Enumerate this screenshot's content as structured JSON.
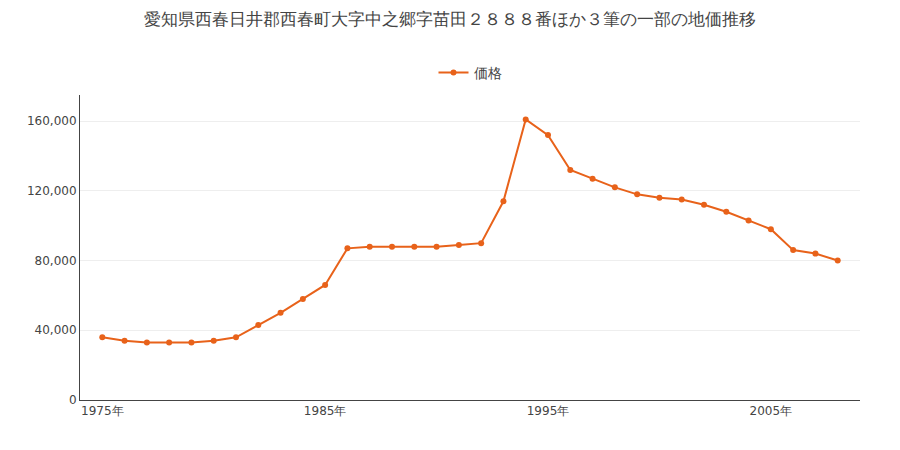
{
  "chart_data": {
    "type": "line",
    "title": "愛知県西春日井郡西春町大字中之郷字苗田２８８８番ほか３筆の一部の地価推移",
    "x": [
      1975,
      1976,
      1977,
      1978,
      1979,
      1980,
      1981,
      1982,
      1983,
      1984,
      1985,
      1986,
      1987,
      1988,
      1989,
      1990,
      1991,
      1992,
      1993,
      1994,
      1995,
      1996,
      1997,
      1998,
      1999,
      2000,
      2001,
      2002,
      2003,
      2004,
      2005,
      2006,
      2007,
      2008
    ],
    "series": [
      {
        "name": "価格",
        "color": "#e8621a",
        "marker": "circle",
        "values": [
          36000,
          34000,
          33000,
          33000,
          33000,
          34000,
          36000,
          43000,
          50000,
          58000,
          66000,
          87000,
          88000,
          88000,
          88000,
          88000,
          89000,
          90000,
          114000,
          161000,
          152000,
          132000,
          127000,
          122000,
          118000,
          116000,
          115000,
          112000,
          108000,
          103000,
          98000,
          86000,
          84000,
          80000
        ]
      }
    ],
    "xlim": [
      1974,
      2009
    ],
    "xticks": [
      {
        "value": 1975,
        "label": "1975年"
      },
      {
        "value": 1985,
        "label": "1985年"
      },
      {
        "value": 1995,
        "label": "1995年"
      },
      {
        "value": 2005,
        "label": "2005年"
      }
    ],
    "ylim": [
      0,
      175000
    ],
    "yticks": [
      0,
      {
        "value": 40000,
        "label": "40,000"
      },
      {
        "value": 80000,
        "label": "80,000"
      },
      {
        "value": 120000,
        "label": "120,000"
      },
      {
        "value": 160000,
        "label": "160,000"
      }
    ],
    "grid": true,
    "legend": "top"
  }
}
